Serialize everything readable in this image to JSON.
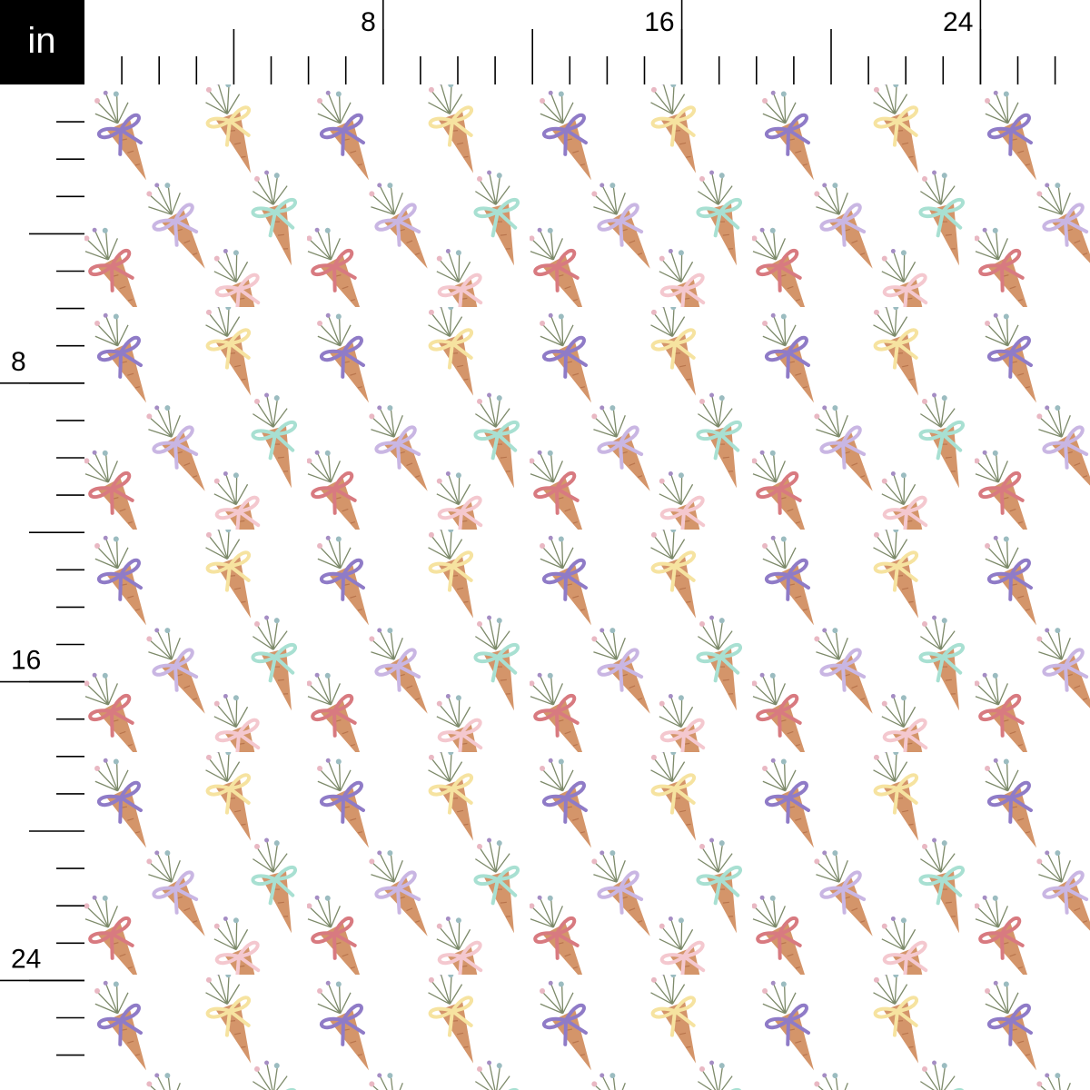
{
  "ruler": {
    "unit": "in",
    "top_labels": [
      8,
      16,
      24
    ],
    "left_labels": [
      8,
      16,
      24
    ]
  }
}
